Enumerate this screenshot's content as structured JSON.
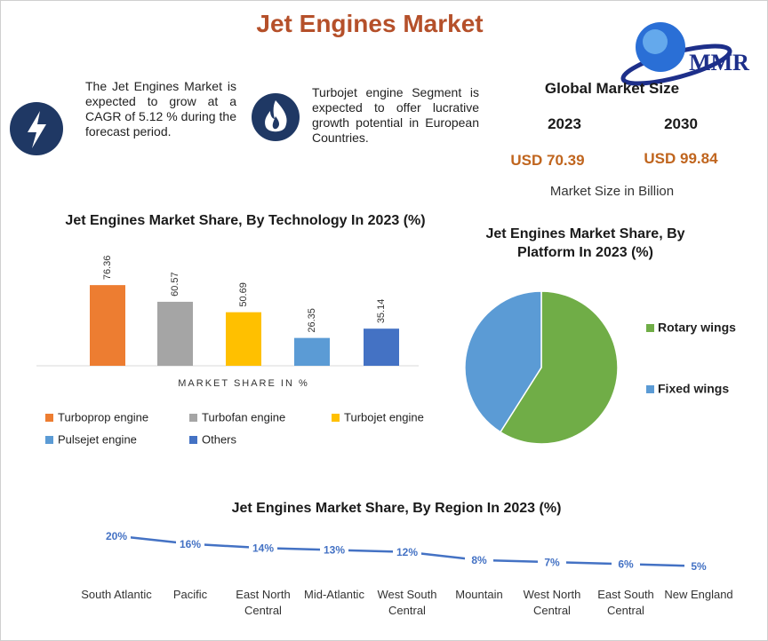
{
  "header": {
    "title": "Jet Engines Market",
    "logo": "MMR"
  },
  "info": [
    "The Jet Engines Market is expected to grow at a CAGR of 5.12 % during the forecast period.",
    "Turbojet engine Segment is expected to offer lucrative growth potential in European Countries."
  ],
  "market_size": {
    "title": "Global Market Size",
    "years": [
      "2023",
      "2030"
    ],
    "values": [
      "USD 70.39",
      "USD 99.84"
    ],
    "note": "Market Size in Billion"
  },
  "chart_data": [
    {
      "type": "bar",
      "title": "Jet Engines Market Share, By Technology In 2023 (%)",
      "x_label": "MARKET SHARE IN %",
      "categories": [
        "Turboprop engine",
        "Turbofan engine",
        "Turbojet engine",
        "Pulsejet engine",
        "Others"
      ],
      "values": [
        76.36,
        60.57,
        50.69,
        26.35,
        35.14
      ],
      "colors": [
        "#ed7d31",
        "#a5a5a5",
        "#ffc000",
        "#5b9bd5",
        "#4472c4"
      ]
    },
    {
      "type": "pie",
      "title": "Jet Engines Market Share, By Platform In 2023 (%)",
      "categories": [
        "Rotary wings",
        "Fixed wings"
      ],
      "values": [
        59,
        41
      ],
      "colors": [
        "#70ad47",
        "#5b9bd5"
      ]
    },
    {
      "type": "line",
      "title": "Jet Engines Market Share, By Region In 2023 (%)",
      "categories": [
        "South Atlantic",
        "Pacific",
        "East North Central",
        "Mid-Atlantic",
        "West South Central",
        "Mountain",
        "West North Central",
        "East South Central",
        "New England"
      ],
      "values": [
        20,
        16,
        14,
        13,
        12,
        8,
        7,
        6,
        5
      ],
      "value_labels": [
        "20%",
        "16%",
        "14%",
        "13%",
        "12%",
        "8%",
        "7%",
        "6%",
        "5%"
      ],
      "color": "#4472c4"
    }
  ]
}
